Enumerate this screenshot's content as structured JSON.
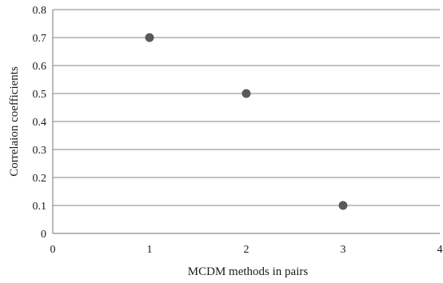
{
  "chart_data": {
    "type": "scatter",
    "title": "",
    "xlabel": "MCDM  methods in pairs",
    "ylabel": "Correlaion coefficients",
    "xlim": [
      0,
      4
    ],
    "ylim": [
      0,
      0.8
    ],
    "xticks": [
      "0",
      "1",
      "2",
      "3",
      "4"
    ],
    "yticks": [
      "0",
      "0.1",
      "0.2",
      "0.3",
      "0.4",
      "0.5",
      "0.6",
      "0.7",
      "0.8"
    ],
    "grid": "horizontal",
    "series": [
      {
        "points": [
          {
            "x": 1,
            "y": 0.7
          },
          {
            "x": 2,
            "y": 0.5
          },
          {
            "x": 3,
            "y": 0.1
          }
        ],
        "color": "#595959"
      }
    ],
    "gridColor": "#9e9e9e",
    "axisColor": "#8c8c8c"
  }
}
